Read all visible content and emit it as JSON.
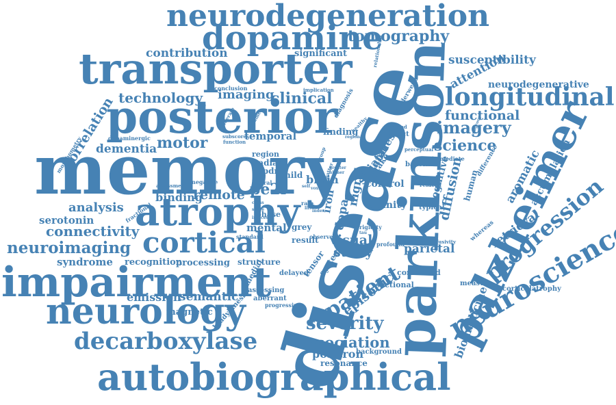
{
  "color": "#4682b4",
  "words": {
    "neurodegeneration": "neurodegeneration",
    "dopamine": "dopamine",
    "tomography": "tomography",
    "transporter": "transporter",
    "contribution": "contribution",
    "significant": "significant",
    "susceptibility": "susceptibility",
    "posterior": "posterior",
    "longitudinal": "longitudinal",
    "technology": "technology",
    "imaging": "imaging",
    "clinical": "clinical",
    "conclusion": "conclusion",
    "implication": "implication",
    "attention": "attention",
    "neurodegenerative": "neurodegenerative",
    "memory": "memory",
    "disease": "disease",
    "parkinson": "parkinson",
    "palzheimer": "palzheimer",
    "correlation": "correlation",
    "dementia": "dementia",
    "motor": "motor",
    "functional": "functional",
    "imagery": "imagery",
    "science": "science",
    "atrophy": "atrophy",
    "cortical": "cortical",
    "connectivity": "connectivity",
    "neuroimaging": "neuroimaging",
    "analysis": "analysis",
    "serotonin": "serotonin",
    "binding": "binding",
    "remote": "remote",
    "pe2i": "pe2i",
    "impairment": "impairment",
    "neurology": "neurology",
    "decarboxylase": "decarboxylase",
    "autobiographical": "autobiographical",
    "association": "association",
    "positron": "positron",
    "resonance": "resonance",
    "severity": "severity",
    "episodic": "episodic",
    "patient": "patient",
    "study": "study",
    "visual": "visual",
    "progression": "progression",
    "neuroscience": "neuroscience",
    "retrieval": "retrieval",
    "aromatic": "aromatic",
    "accumulation": "accumulation",
    "diffusion": "diffusion",
    "cognitive": "cognitive",
    "human": "human",
    "striatal": "striatal",
    "uptake": "uptake",
    "nigral": "nigral",
    "dopa": "dopa",
    "iron": "iron",
    "control": "control",
    "parietal": "parietal",
    "amnesia": "amnesia",
    "mental": "mental",
    "emission": "emission",
    "semantic": "semantic",
    "magnetic": "magnetic",
    "syndrome": "syndrome",
    "recognition": "recognition",
    "processing": "processing",
    "structure": "structure",
    "fractional": "fractional",
    "temporal": "temporal",
    "finding": "finding",
    "region": "region",
    "radian": "radian",
    "updrs": "updrs",
    "mild": "mild",
    "brain": "brain",
    "affinity": "affinity",
    "typical": "typical",
    "baseline": "baseline",
    "immediate": "immediate",
    "biomedicine": "biomedicine",
    "corticalatrophy": "corticalatrophy",
    "measure": "measure",
    "whereas": "whereas",
    "difference": "difference",
    "subgroup": "subgroup",
    "perceptual": "perceptual",
    "related": "related",
    "diagnostic": "diagnostic",
    "diffusivity": "diffusivity",
    "profound": "profound",
    "correlated": "correlated",
    "sectional": "sectional",
    "background": "background",
    "bradykinesia": "bradykinesia",
    "progressive": "progressive",
    "aberrant": "aberrant",
    "assessing": "assessing",
    "medial": "medial",
    "delayed": "delayed",
    "tensor": "tensor",
    "system": "system",
    "result": "result",
    "observed": "observed",
    "rigidity": "rigidity",
    "grey": "grey",
    "standard": "standard",
    "assessment": "assessment",
    "negative": "negative",
    "lateral": "lateral",
    "phase": "phase",
    "dopaminergic": "dopaminergic",
    "morphometry": "morphometry",
    "subscores": "subscores",
    "function": "function",
    "moderate": "moderate",
    "alteration": "alteration",
    "volume": "volume",
    "healthy": "healthy",
    "regional": "regional",
    "diagnosis": "diagnosis",
    "relationship": "relationship",
    "underwent": "underwent",
    "method": "method",
    "spect": "spect",
    "greater": "greater",
    "higher": "higher",
    "matter": "matter",
    "group": "group",
    "voxel": "voxel",
    "self": "self",
    "rate": "rate",
    "life": "life",
    "index": "index",
    "score": "score",
    "cross": "cross",
    "indices": "indices",
    "bpnd": "bpnd",
    "tau": "tau"
  }
}
